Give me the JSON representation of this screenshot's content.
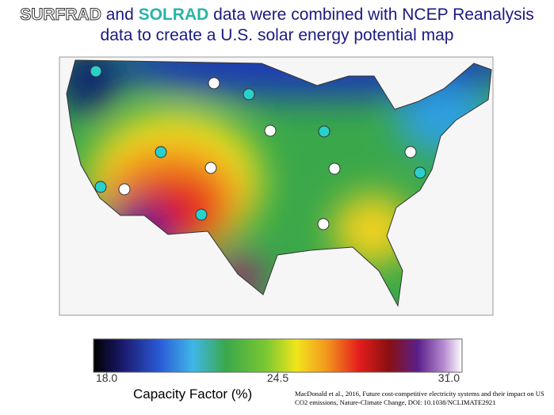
{
  "title": {
    "word1": "SURFRAD",
    "word2": "and",
    "word3": "SOLRAD",
    "line1_rest": "data were combined with NCEP Reanalysis",
    "line2": "data to create a U.S. solar energy potential map"
  },
  "colorbar": {
    "label": "Capacity Factor (%)",
    "range": [
      17.5,
      31.5
    ],
    "ticks": [
      {
        "value": 18,
        "label": "18.0"
      },
      {
        "value": 24.5,
        "label": "24.5"
      },
      {
        "value": 31,
        "label": "31.0"
      }
    ]
  },
  "citation": "MacDonald et al., 2016, Future cost-competitive electricity systems and their impact on US CO2 emissions,  Nature-Climate Change, DOI: 10.1038/NCLIMATE2921"
}
